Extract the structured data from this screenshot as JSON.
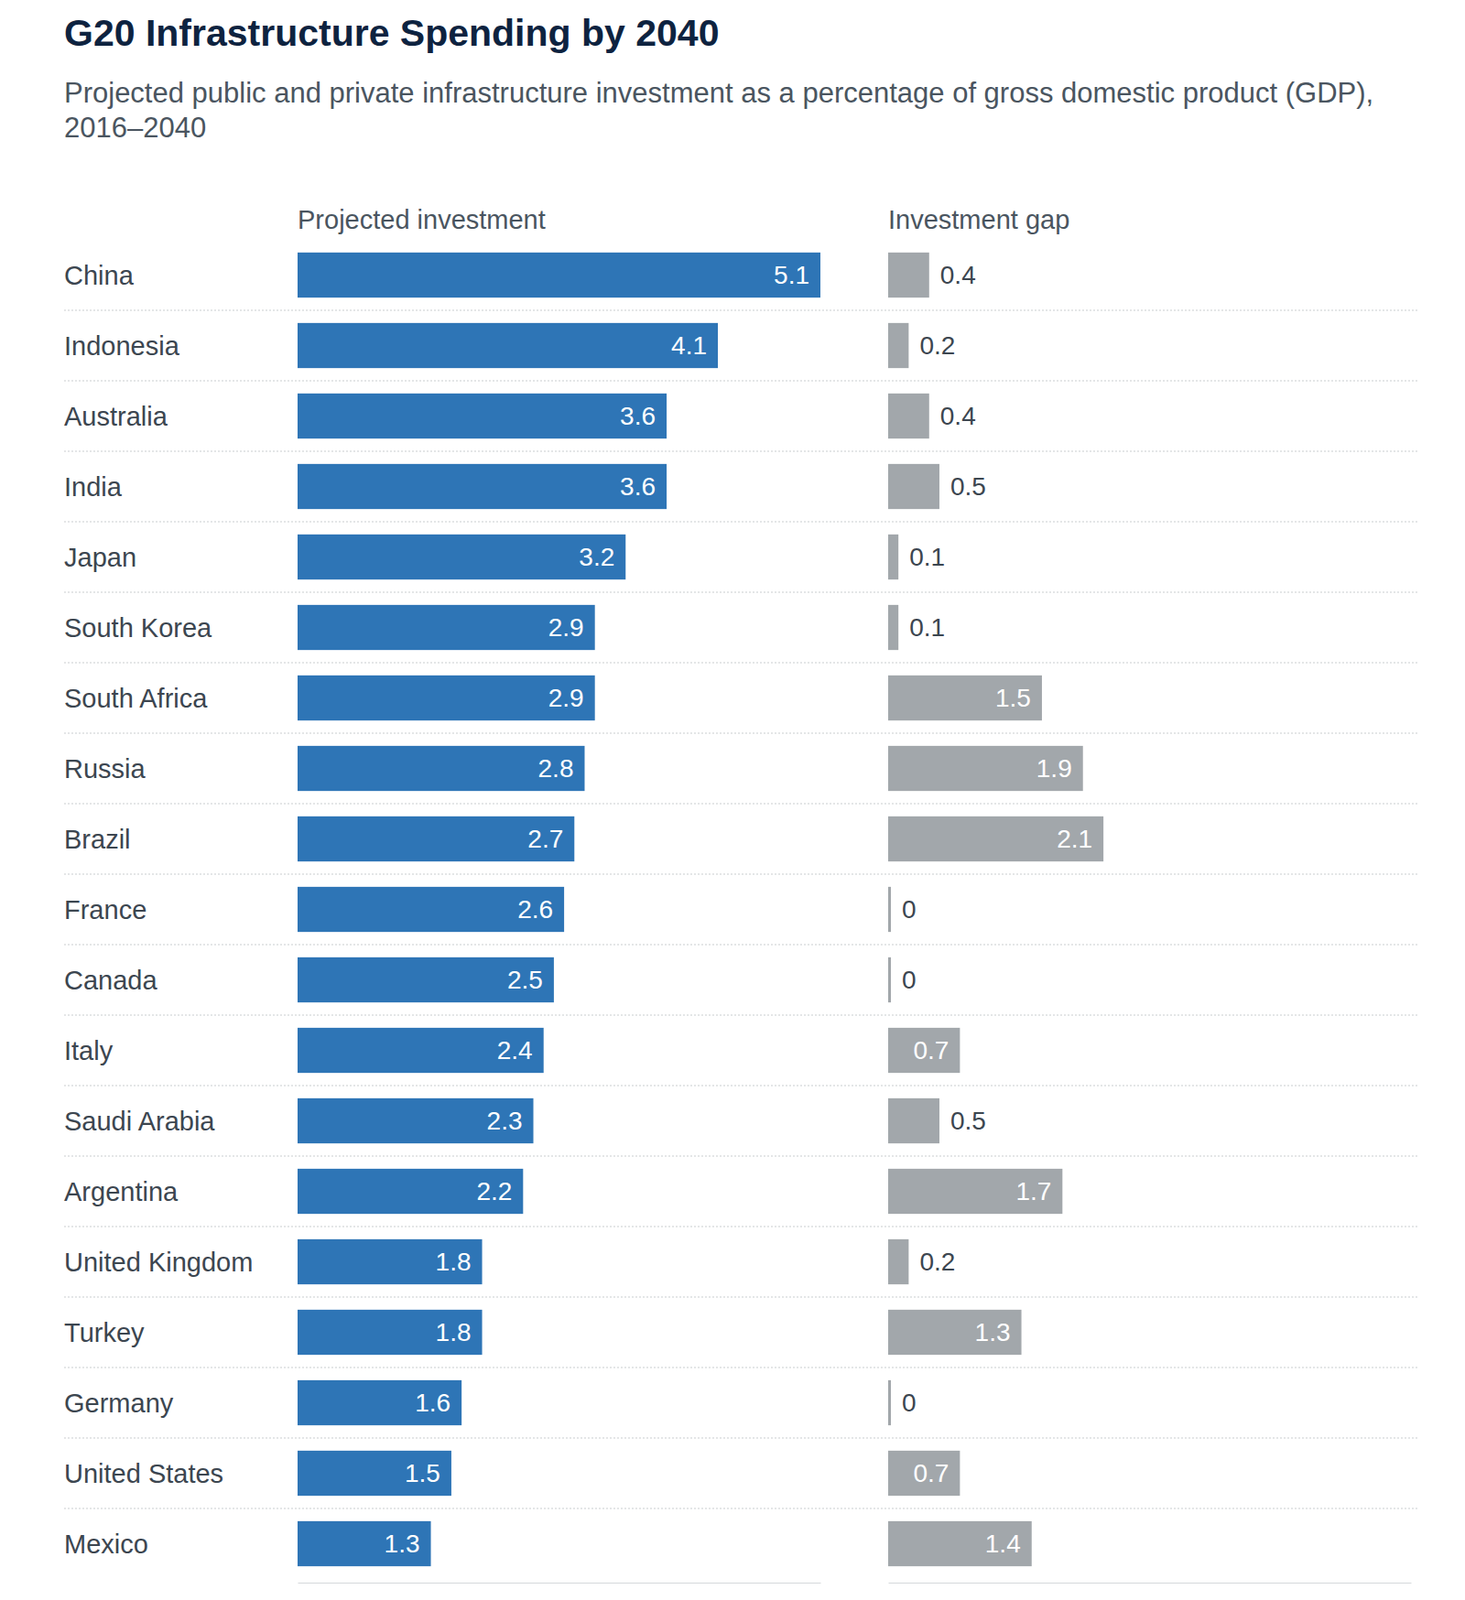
{
  "header": {
    "title": "G20 Infrastructure Spending by 2040",
    "subtitle": "Projected public and private infrastructure investment as a percentage of gross domestic product (GDP), 2016–2040"
  },
  "chart_data": [
    {
      "type": "bar",
      "orientation": "horizontal",
      "title": "Projected investment",
      "categories": [
        "China",
        "Indonesia",
        "Australia",
        "India",
        "Japan",
        "South Korea",
        "South Africa",
        "Russia",
        "Brazil",
        "France",
        "Canada",
        "Italy",
        "Saudi Arabia",
        "Argentina",
        "United Kingdom",
        "Turkey",
        "Germany",
        "United States",
        "Mexico"
      ],
      "values": [
        5.1,
        4.1,
        3.6,
        3.6,
        3.2,
        2.9,
        2.9,
        2.8,
        2.7,
        2.6,
        2.5,
        2.4,
        2.3,
        2.2,
        1.8,
        1.8,
        1.6,
        1.5,
        1.3
      ],
      "color": "#2e75b6",
      "xlim": [
        0,
        5.1
      ],
      "data_labels": true,
      "tick_labels": false
    },
    {
      "type": "bar",
      "orientation": "horizontal",
      "title": "Investment gap",
      "values": [
        0.4,
        0.2,
        0.4,
        0.5,
        0.1,
        0.1,
        1.5,
        1.9,
        2.1,
        0,
        0,
        0.7,
        0.5,
        1.7,
        0.2,
        1.3,
        0,
        0.7,
        1.4
      ],
      "color": "#a2a7ab",
      "xlim": [
        0,
        5.1
      ],
      "data_labels": true,
      "tick_labels": false
    }
  ]
}
